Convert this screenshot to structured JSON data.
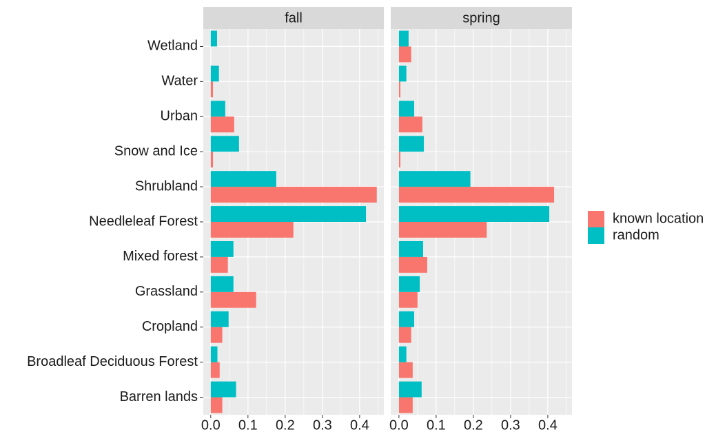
{
  "chart_data": [
    {
      "type": "bar",
      "title": "fall",
      "categories": [
        "Barren lands",
        "Broadleaf Deciduous Forest",
        "Cropland",
        "Grassland",
        "Mixed forest",
        "Needleleaf Forest",
        "Shrubland",
        "Snow and Ice",
        "Urban",
        "Water",
        "Wetland"
      ],
      "series": [
        {
          "name": "known location",
          "color": "#F8766D",
          "values": [
            0.031,
            0.024,
            0.031,
            0.122,
            0.046,
            0.222,
            0.446,
            0.006,
            0.063,
            0.006,
            0
          ]
        },
        {
          "name": "random",
          "color": "#00BFC4",
          "values": [
            0.068,
            0.018,
            0.048,
            0.061,
            0.061,
            0.417,
            0.176,
            0.076,
            0.039,
            0.022,
            0.017
          ]
        }
      ],
      "xlim": [
        -0.02,
        0.465
      ],
      "xticks": [
        {
          "value": 0,
          "label": "0.0"
        },
        0.1,
        0.2,
        0.3,
        0.4
      ],
      "grid": true
    },
    {
      "type": "bar",
      "title": "spring",
      "categories": [
        "Barren lands",
        "Broadleaf Deciduous Forest",
        "Cropland",
        "Grassland",
        "Mixed forest",
        "Needleleaf Forest",
        "Shrubland",
        "Snow and Ice",
        "Urban",
        "Water",
        "Wetland"
      ],
      "series": [
        {
          "name": "known location",
          "color": "#F8766D",
          "values": [
            0.037,
            0.037,
            0.033,
            0.05,
            0.076,
            0.236,
            0.417,
            0.004,
            0.063,
            0.004,
            0.033
          ]
        },
        {
          "name": "random",
          "color": "#00BFC4",
          "values": [
            0.061,
            0.02,
            0.041,
            0.056,
            0.065,
            0.404,
            0.192,
            0.067,
            0.041,
            0.02,
            0.026
          ]
        }
      ],
      "xlim": [
        -0.022,
        0.465
      ],
      "xticks": [
        {
          "value": 0,
          "label": "0.0"
        },
        0.1,
        0.2,
        0.3,
        0.4
      ],
      "grid": true
    }
  ]
}
